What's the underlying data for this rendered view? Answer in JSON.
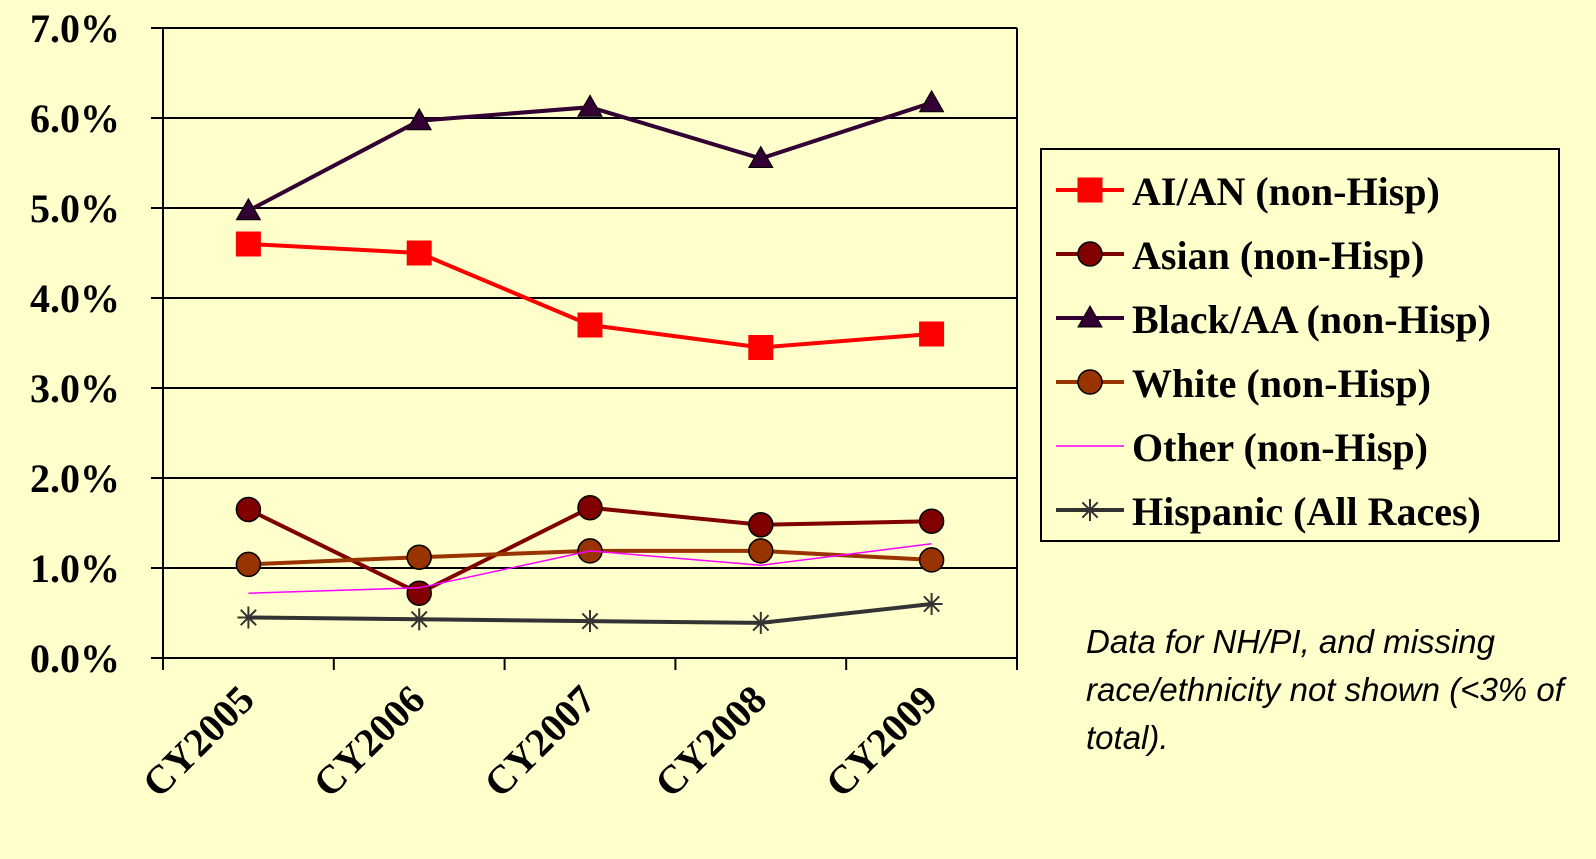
{
  "chart_data": {
    "type": "line",
    "categories": [
      "CY2005",
      "CY2006",
      "CY2007",
      "CY2008",
      "CY2009"
    ],
    "ylim": [
      0,
      7
    ],
    "yticks": [
      "0.0%",
      "1.0%",
      "2.0%",
      "3.0%",
      "4.0%",
      "5.0%",
      "6.0%",
      "7.0%"
    ],
    "grid": true,
    "legend_position": "right",
    "series": [
      {
        "name": "AI/AN (non-Hisp)",
        "values": [
          4.6,
          4.5,
          3.7,
          3.45,
          3.6
        ],
        "color": "#FF0000",
        "marker": "square"
      },
      {
        "name": "Asian (non-Hisp)",
        "values": [
          1.65,
          0.72,
          1.67,
          1.48,
          1.52
        ],
        "color": "#800000",
        "marker": "circle"
      },
      {
        "name": "Black/AA (non-Hisp)",
        "values": [
          4.97,
          5.97,
          6.12,
          5.55,
          6.17
        ],
        "color": "#330033",
        "marker": "triangle"
      },
      {
        "name": "White (non-Hisp)",
        "values": [
          1.04,
          1.12,
          1.19,
          1.19,
          1.09
        ],
        "color": "#993300",
        "marker": "circle"
      },
      {
        "name": "Other (non-Hisp)",
        "values": [
          0.72,
          0.78,
          1.19,
          1.03,
          1.27
        ],
        "color": "#FF00FF",
        "marker": "none"
      },
      {
        "name": "Hispanic (All Races)",
        "values": [
          0.45,
          0.43,
          0.41,
          0.39,
          0.6
        ],
        "color": "#333333",
        "marker": "asterisk"
      }
    ]
  },
  "footnote": "Data for NH/PI, and missing race/ethnicity not shown (<3% of total)."
}
